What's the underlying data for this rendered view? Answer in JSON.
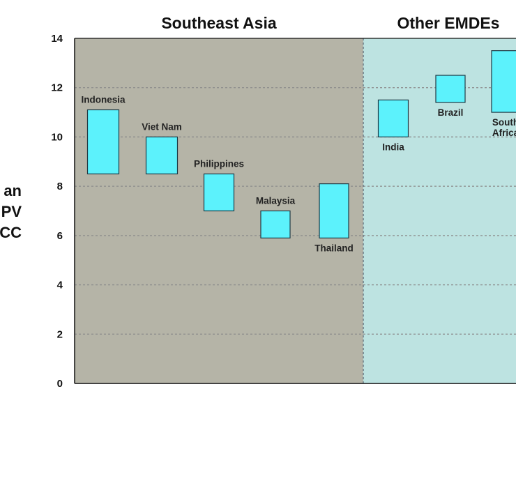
{
  "chart_data": {
    "type": "bar",
    "subtype": "floating-range",
    "ylabel_lines": [
      "an",
      "PV",
      "CC"
    ],
    "ylim": [
      0,
      14
    ],
    "yticks": [
      0,
      2,
      4,
      6,
      8,
      10,
      12,
      14
    ],
    "grid": true,
    "panels": [
      {
        "title": "Southeast Asia",
        "background": "#b5b4a7",
        "categories": [
          "Indonesia",
          "Viet Nam",
          "Philippines",
          "Malaysia",
          "Thailand"
        ],
        "ranges": [
          [
            8.5,
            11.1
          ],
          [
            8.5,
            10.0
          ],
          [
            7.0,
            8.5
          ],
          [
            5.9,
            7.0
          ],
          [
            5.9,
            8.1
          ]
        ],
        "label_position": [
          "above",
          "above",
          "above",
          "above",
          "below"
        ]
      },
      {
        "title": "Other EMDEs",
        "background": "#bde3e1",
        "categories": [
          "India",
          "Brazil",
          "South Africa"
        ],
        "category_lines": [
          [
            "India"
          ],
          [
            "Brazil"
          ],
          [
            "South",
            "Africa"
          ]
        ],
        "ranges": [
          [
            10.0,
            11.5
          ],
          [
            11.4,
            12.5
          ],
          [
            11.0,
            13.5
          ]
        ],
        "label_position": [
          "below",
          "below",
          "below"
        ]
      }
    ],
    "bar_color": "#5cf2fc",
    "bar_edge_color": "#1d3a45",
    "gridline_color": "#8c8c8c"
  }
}
